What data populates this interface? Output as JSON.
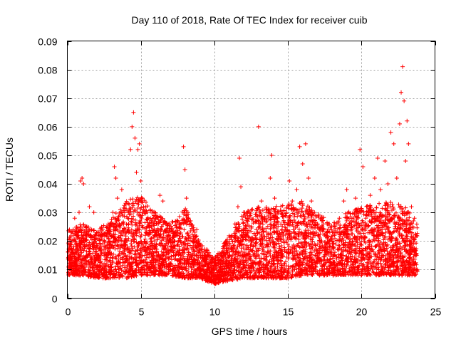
{
  "chart_data": {
    "type": "scatter",
    "title": "Day 110 of 2018, Rate Of TEC Index for receiver cuib",
    "xlabel": "GPS time / hours",
    "ylabel": "ROTI / TECUs",
    "xlim": [
      0,
      25
    ],
    "ylim": [
      0,
      0.09
    ],
    "xticks": [
      0,
      5,
      10,
      15,
      20,
      25
    ],
    "xtick_labels": [
      "0",
      "5",
      "10",
      "15",
      "20",
      "25"
    ],
    "yticks": [
      0,
      0.01,
      0.02,
      0.03,
      0.04,
      0.05,
      0.06,
      0.07,
      0.08,
      0.09
    ],
    "ytick_labels": [
      "0",
      "0.01",
      "0.02",
      "0.03",
      "0.04",
      "0.05",
      "0.06",
      "0.07",
      "0.08",
      "0.09"
    ],
    "grid": true,
    "marker": "+",
    "color": "#ff0000",
    "series": [
      {
        "name": "ROTI",
        "points": [
          [
            0.1,
            0.01
          ],
          [
            0.2,
            0.019
          ],
          [
            0.3,
            0.016
          ],
          [
            0.4,
            0.024
          ],
          [
            0.5,
            0.028
          ],
          [
            0.6,
            0.013
          ],
          [
            0.7,
            0.021
          ],
          [
            0.8,
            0.03
          ],
          [
            0.9,
            0.041
          ],
          [
            1.0,
            0.042
          ],
          [
            1.1,
            0.04
          ],
          [
            1.2,
            0.018
          ],
          [
            1.3,
            0.025
          ],
          [
            1.5,
            0.032
          ],
          [
            1.6,
            0.022
          ],
          [
            1.8,
            0.03
          ],
          [
            1.9,
            0.015
          ],
          [
            2.1,
            0.022
          ],
          [
            2.3,
            0.018
          ],
          [
            2.5,
            0.012
          ],
          [
            2.7,
            0.025
          ],
          [
            2.9,
            0.02
          ],
          [
            3.1,
            0.03
          ],
          [
            3.2,
            0.046
          ],
          [
            3.3,
            0.042
          ],
          [
            3.4,
            0.035
          ],
          [
            3.5,
            0.02
          ],
          [
            3.7,
            0.038
          ],
          [
            3.9,
            0.03
          ],
          [
            4.1,
            0.028
          ],
          [
            4.3,
            0.052
          ],
          [
            4.4,
            0.06
          ],
          [
            4.5,
            0.065
          ],
          [
            4.6,
            0.056
          ],
          [
            4.7,
            0.044
          ],
          [
            4.8,
            0.052
          ],
          [
            4.9,
            0.054
          ],
          [
            5.0,
            0.041
          ],
          [
            5.1,
            0.035
          ],
          [
            5.3,
            0.022
          ],
          [
            5.5,
            0.025
          ],
          [
            5.7,
            0.018
          ],
          [
            5.9,
            0.027
          ],
          [
            6.1,
            0.022
          ],
          [
            6.3,
            0.036
          ],
          [
            6.5,
            0.034
          ],
          [
            6.7,
            0.026
          ],
          [
            6.9,
            0.022
          ],
          [
            7.1,
            0.018
          ],
          [
            7.3,
            0.02
          ],
          [
            7.5,
            0.022
          ],
          [
            7.7,
            0.015
          ],
          [
            7.9,
            0.053
          ],
          [
            8.0,
            0.045
          ],
          [
            8.1,
            0.035
          ],
          [
            8.2,
            0.03
          ],
          [
            8.4,
            0.026
          ],
          [
            8.6,
            0.02
          ],
          [
            8.8,
            0.024
          ],
          [
            9.0,
            0.018
          ],
          [
            9.2,
            0.015
          ],
          [
            9.4,
            0.014
          ],
          [
            9.6,
            0.012
          ],
          [
            9.8,
            0.01
          ],
          [
            10.0,
            0.008
          ],
          [
            10.2,
            0.009
          ],
          [
            10.4,
            0.011
          ],
          [
            10.6,
            0.008
          ],
          [
            10.8,
            0.012
          ],
          [
            11.0,
            0.015
          ],
          [
            11.2,
            0.022
          ],
          [
            11.4,
            0.026
          ],
          [
            11.6,
            0.032
          ],
          [
            11.7,
            0.049
          ],
          [
            11.8,
            0.039
          ],
          [
            12.0,
            0.03
          ],
          [
            12.2,
            0.025
          ],
          [
            12.5,
            0.02
          ],
          [
            12.8,
            0.027
          ],
          [
            13.0,
            0.06
          ],
          [
            13.2,
            0.034
          ],
          [
            13.5,
            0.028
          ],
          [
            13.8,
            0.042
          ],
          [
            13.9,
            0.05
          ],
          [
            14.1,
            0.035
          ],
          [
            14.3,
            0.028
          ],
          [
            14.6,
            0.024
          ],
          [
            14.9,
            0.03
          ],
          [
            15.1,
            0.041
          ],
          [
            15.3,
            0.034
          ],
          [
            15.6,
            0.038
          ],
          [
            15.8,
            0.053
          ],
          [
            16.0,
            0.047
          ],
          [
            16.2,
            0.054
          ],
          [
            16.4,
            0.042
          ],
          [
            16.6,
            0.034
          ],
          [
            16.8,
            0.03
          ],
          [
            17.0,
            0.026
          ],
          [
            17.3,
            0.02
          ],
          [
            17.6,
            0.022
          ],
          [
            17.9,
            0.018
          ],
          [
            18.2,
            0.025
          ],
          [
            18.5,
            0.028
          ],
          [
            18.8,
            0.034
          ],
          [
            19.0,
            0.038
          ],
          [
            19.3,
            0.025
          ],
          [
            19.6,
            0.035
          ],
          [
            19.9,
            0.052
          ],
          [
            20.1,
            0.046
          ],
          [
            20.3,
            0.028
          ],
          [
            20.6,
            0.036
          ],
          [
            20.9,
            0.042
          ],
          [
            21.1,
            0.049
          ],
          [
            21.3,
            0.038
          ],
          [
            21.6,
            0.048
          ],
          [
            21.8,
            0.04
          ],
          [
            22.0,
            0.058
          ],
          [
            22.2,
            0.054
          ],
          [
            22.4,
            0.042
          ],
          [
            22.6,
            0.061
          ],
          [
            22.7,
            0.072
          ],
          [
            22.8,
            0.081
          ],
          [
            22.9,
            0.069
          ],
          [
            23.0,
            0.048
          ],
          [
            23.1,
            0.062
          ],
          [
            23.2,
            0.054
          ],
          [
            23.4,
            0.032
          ],
          [
            23.6,
            0.028
          ],
          [
            23.7,
            0.015
          ],
          [
            23.8,
            0.01
          ]
        ]
      }
    ],
    "density_profile": {
      "x": [
        0,
        1,
        2,
        3,
        4,
        5,
        6,
        7,
        8,
        9,
        10,
        11,
        12,
        13,
        14,
        15,
        16,
        17,
        18,
        19,
        20,
        21,
        22,
        23,
        23.8
      ],
      "low": [
        0.008,
        0.008,
        0.007,
        0.007,
        0.007,
        0.008,
        0.008,
        0.008,
        0.007,
        0.007,
        0.005,
        0.006,
        0.007,
        0.007,
        0.007,
        0.007,
        0.008,
        0.008,
        0.008,
        0.008,
        0.008,
        0.008,
        0.008,
        0.008,
        0.008
      ],
      "high": [
        0.024,
        0.026,
        0.024,
        0.028,
        0.034,
        0.036,
        0.03,
        0.026,
        0.032,
        0.02,
        0.014,
        0.022,
        0.03,
        0.032,
        0.032,
        0.033,
        0.034,
        0.03,
        0.026,
        0.03,
        0.032,
        0.033,
        0.034,
        0.032,
        0.026
      ]
    }
  }
}
